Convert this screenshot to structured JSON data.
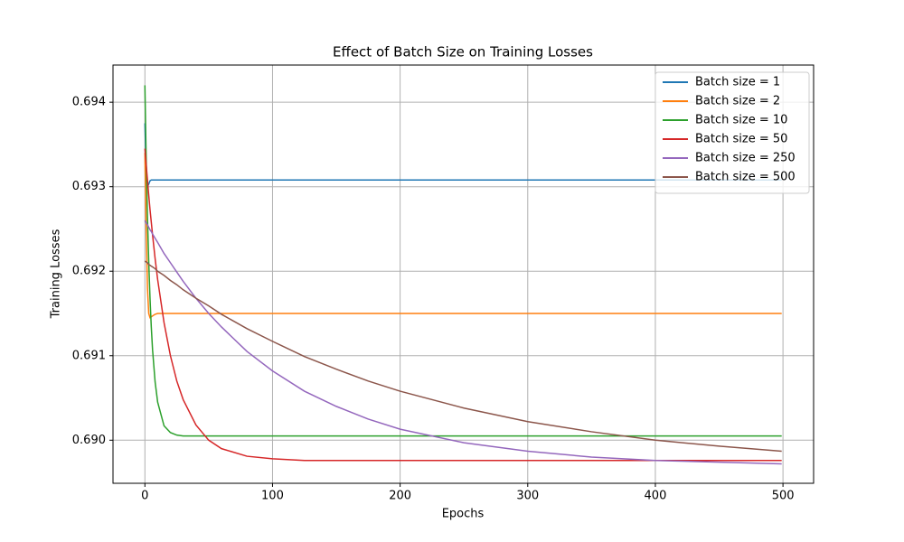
{
  "chart_data": {
    "type": "line",
    "title": "Effect of Batch Size on Training Losses",
    "x_label": "Epochs",
    "y_label": "Training Losses",
    "x": [
      0,
      1,
      2,
      3,
      4,
      5,
      6,
      8,
      10,
      15,
      20,
      25,
      30,
      40,
      50,
      60,
      80,
      100,
      125,
      150,
      175,
      200,
      250,
      300,
      350,
      400,
      450,
      499
    ],
    "series": [
      {
        "name": "Batch size = 1",
        "color": "#1f77b4",
        "values": [
          0.69375,
          0.6932,
          0.693,
          0.69303,
          0.69307,
          0.69308,
          0.69308,
          0.69308,
          0.69308,
          0.69308,
          0.69308,
          0.69308,
          0.69308,
          0.69308,
          0.69308,
          0.69308,
          0.69308,
          0.69308,
          0.69308,
          0.69308,
          0.69308,
          0.69308,
          0.69308,
          0.69308,
          0.69308,
          0.69308,
          0.69308,
          0.69308
        ]
      },
      {
        "name": "Batch size = 2",
        "color": "#ff7f0e",
        "values": [
          0.6934,
          0.6925,
          0.6918,
          0.6915,
          0.69145,
          0.69146,
          0.69147,
          0.69149,
          0.6915,
          0.6915,
          0.6915,
          0.6915,
          0.6915,
          0.6915,
          0.6915,
          0.6915,
          0.6915,
          0.6915,
          0.6915,
          0.6915,
          0.6915,
          0.6915,
          0.6915,
          0.6915,
          0.6915,
          0.6915,
          0.6915,
          0.6915
        ]
      },
      {
        "name": "Batch size = 10",
        "color": "#2ca02c",
        "values": [
          0.6942,
          0.69333,
          0.69265,
          0.69211,
          0.69168,
          0.69134,
          0.69107,
          0.69069,
          0.69045,
          0.69017,
          0.69009,
          0.69006,
          0.69005,
          0.69005,
          0.69005,
          0.69005,
          0.69005,
          0.69005,
          0.69005,
          0.69005,
          0.69005,
          0.69005,
          0.69005,
          0.69005,
          0.69005,
          0.69005,
          0.69005,
          0.69005
        ]
      },
      {
        "name": "Batch size = 50",
        "color": "#d62728",
        "values": [
          0.69345,
          0.69326,
          0.69308,
          0.6929,
          0.69273,
          0.69258,
          0.69243,
          0.69215,
          0.6919,
          0.69139,
          0.691,
          0.6907,
          0.69048,
          0.69018,
          0.69,
          0.6899,
          0.68981,
          0.68978,
          0.68976,
          0.68976,
          0.68976,
          0.68976,
          0.68976,
          0.68976,
          0.68976,
          0.68976,
          0.68976,
          0.68976
        ]
      },
      {
        "name": "Batch size = 250",
        "color": "#9467bd",
        "values": [
          0.6926,
          0.69257,
          0.69255,
          0.69252,
          0.69249,
          0.69247,
          0.69244,
          0.69239,
          0.69234,
          0.69221,
          0.6921,
          0.69199,
          0.69188,
          0.69168,
          0.6915,
          0.69134,
          0.69105,
          0.69082,
          0.69058,
          0.6904,
          0.69025,
          0.69013,
          0.68997,
          0.68987,
          0.6898,
          0.68976,
          0.68974,
          0.68972
        ]
      },
      {
        "name": "Batch size = 500",
        "color": "#8c564b",
        "values": [
          0.69212,
          0.69211,
          0.6921,
          0.69208,
          0.69207,
          0.69206,
          0.69205,
          0.69203,
          0.692,
          0.69195,
          0.69189,
          0.69184,
          0.69178,
          0.69168,
          0.69159,
          0.69149,
          0.69132,
          0.69117,
          0.69099,
          0.69084,
          0.6907,
          0.69058,
          0.69038,
          0.69022,
          0.6901,
          0.69,
          0.68993,
          0.68987
        ]
      }
    ],
    "xlim": [
      -25,
      524
    ],
    "ylim": [
      0.68949,
      0.69444
    ],
    "xticks": [
      0,
      100,
      200,
      300,
      400,
      500
    ],
    "yticks": [
      {
        "value": 0.69,
        "label": "0.690"
      },
      0.691,
      0.692,
      0.693,
      0.694
    ],
    "grid": true,
    "legend": "upper right"
  }
}
